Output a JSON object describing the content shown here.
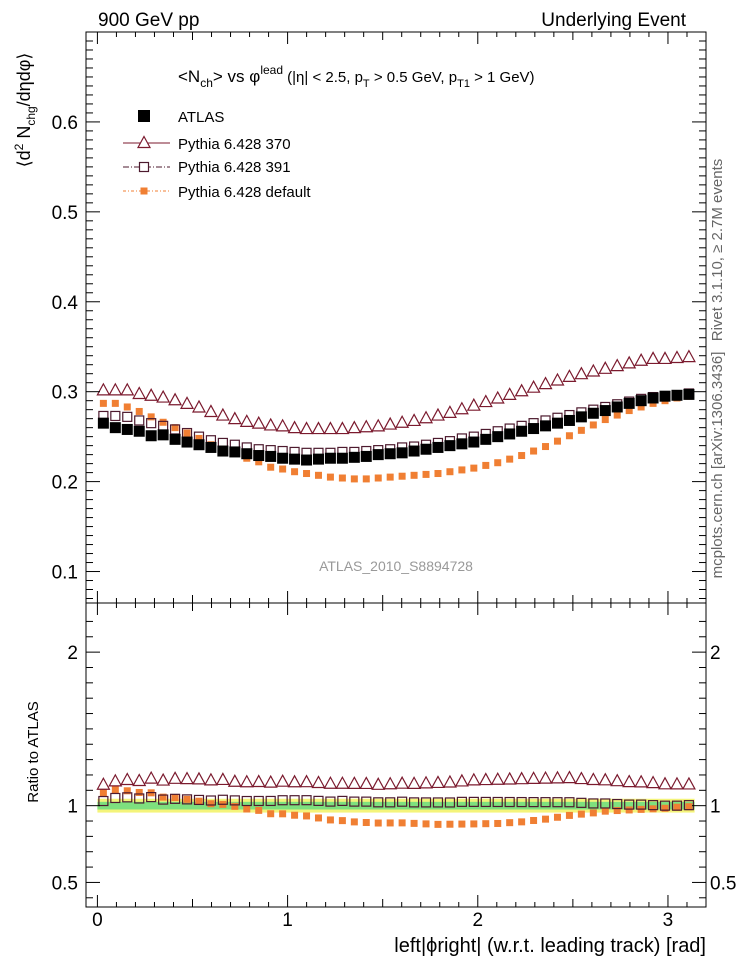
{
  "header": {
    "left_label": "900 GeV pp",
    "right_label": "Underlying Event"
  },
  "side_labels": {
    "rivet": "Rivet 3.1.10, ≥ 2.7M events",
    "mcplots": "mcplots.cern.ch [arXiv:1306.3436]"
  },
  "chart_data": {
    "type": "scatter",
    "title": "<N_ch> vs φ^lead (|η| < 2.5, p_T > 0.5 GeV, p_T1 > 1 GeV)",
    "title_parts": {
      "a": "<N",
      "a_sub": "ch",
      "b": "> vs φ",
      "b_sup": "lead",
      "c": " (|η| < 2.5, p",
      "c_sub": "T",
      "d": " > 0.5 GeV, p",
      "d_sub": "T1",
      "e": " > 1 GeV)"
    },
    "ylabel": "⟨d² N_chg/dηdφ⟩",
    "ylabel_parts": {
      "a": "⟨d",
      "a_sup": "2",
      "b": " N",
      "b_sub": "chg",
      "c": "/dηdφ⟩"
    },
    "xlabel": "left|ϕright| (w.r.t. leading track) [rad]",
    "ratio_ylabel": "Ratio to ATLAS",
    "watermark": "ATLAS_2010_S8894728",
    "xlim": [
      -0.06,
      3.2
    ],
    "ylim": [
      0.065,
      0.7
    ],
    "ratio_ylim": [
      0.34,
      2.32
    ],
    "x_major_ticks": [
      0,
      1,
      2,
      3
    ],
    "x_tick_labels": [
      "0",
      "1",
      "2",
      "3"
    ],
    "y_major_ticks": [
      0.1,
      0.2,
      0.3,
      0.4,
      0.5,
      0.6
    ],
    "y_tick_labels": [
      "0.1",
      "0.2",
      "0.3",
      "0.4",
      "0.5",
      "0.6"
    ],
    "ratio_major_ticks": [
      0.5,
      1,
      2
    ],
    "ratio_tick_labels": [
      "0.5",
      "1",
      "2"
    ],
    "x": [
      0.0314,
      0.0942,
      0.157,
      0.2199,
      0.2827,
      0.3456,
      0.4084,
      0.4712,
      0.5341,
      0.5969,
      0.6597,
      0.7226,
      0.7854,
      0.8482,
      0.9111,
      0.9739,
      1.0367,
      1.0996,
      1.1624,
      1.2252,
      1.2881,
      1.3509,
      1.4137,
      1.4766,
      1.5394,
      1.6022,
      1.6651,
      1.7279,
      1.7907,
      1.8536,
      1.9164,
      1.9792,
      2.0421,
      2.1049,
      2.1677,
      2.2306,
      2.2934,
      2.3562,
      2.4191,
      2.4819,
      2.5447,
      2.6076,
      2.6704,
      2.7332,
      2.7961,
      2.8589,
      2.9217,
      2.9845,
      3.0474,
      3.1102
    ],
    "series": [
      {
        "name": "ATLAS",
        "color": "#000000",
        "marker": "filled-square",
        "values": [
          0.265,
          0.26,
          0.258,
          0.256,
          0.251,
          0.252,
          0.247,
          0.244,
          0.241,
          0.238,
          0.234,
          0.233,
          0.231,
          0.229,
          0.228,
          0.226,
          0.225,
          0.224,
          0.225,
          0.226,
          0.226,
          0.227,
          0.228,
          0.23,
          0.231,
          0.232,
          0.234,
          0.236,
          0.238,
          0.24,
          0.242,
          0.244,
          0.247,
          0.25,
          0.253,
          0.256,
          0.259,
          0.262,
          0.265,
          0.268,
          0.272,
          0.276,
          0.279,
          0.283,
          0.287,
          0.29,
          0.293,
          0.295,
          0.296,
          0.297
        ]
      },
      {
        "name": "Pythia 6.428 370",
        "color": "#7b1a2e",
        "marker": "open-triangle",
        "values": [
          0.302,
          0.302,
          0.302,
          0.298,
          0.296,
          0.294,
          0.291,
          0.287,
          0.283,
          0.278,
          0.274,
          0.27,
          0.267,
          0.265,
          0.263,
          0.262,
          0.26,
          0.259,
          0.259,
          0.259,
          0.259,
          0.26,
          0.261,
          0.262,
          0.264,
          0.266,
          0.268,
          0.271,
          0.274,
          0.277,
          0.281,
          0.285,
          0.289,
          0.293,
          0.297,
          0.301,
          0.305,
          0.309,
          0.313,
          0.317,
          0.32,
          0.323,
          0.326,
          0.329,
          0.332,
          0.335,
          0.337,
          0.337,
          0.338,
          0.339
        ]
      },
      {
        "name": "Pythia 6.428 391",
        "color": "#4d1a2e",
        "marker": "open-square",
        "values": [
          0.273,
          0.273,
          0.272,
          0.268,
          0.265,
          0.262,
          0.258,
          0.254,
          0.25,
          0.246,
          0.243,
          0.241,
          0.238,
          0.236,
          0.235,
          0.234,
          0.233,
          0.232,
          0.232,
          0.232,
          0.233,
          0.233,
          0.234,
          0.235,
          0.236,
          0.238,
          0.239,
          0.241,
          0.243,
          0.245,
          0.248,
          0.25,
          0.253,
          0.256,
          0.259,
          0.262,
          0.265,
          0.268,
          0.271,
          0.274,
          0.277,
          0.28,
          0.283,
          0.286,
          0.289,
          0.292,
          0.294,
          0.295,
          0.296,
          0.298
        ]
      },
      {
        "name": "Pythia 6.428 default",
        "color": "#f07f33",
        "marker": "filled-square-small",
        "values": [
          0.287,
          0.287,
          0.283,
          0.278,
          0.272,
          0.266,
          0.26,
          0.254,
          0.248,
          0.241,
          0.236,
          0.232,
          0.226,
          0.222,
          0.216,
          0.214,
          0.211,
          0.209,
          0.207,
          0.205,
          0.204,
          0.203,
          0.203,
          0.204,
          0.205,
          0.206,
          0.207,
          0.208,
          0.209,
          0.211,
          0.213,
          0.215,
          0.218,
          0.221,
          0.225,
          0.229,
          0.234,
          0.239,
          0.245,
          0.251,
          0.257,
          0.263,
          0.269,
          0.274,
          0.279,
          0.283,
          0.287,
          0.29,
          0.293,
          0.295
        ]
      }
    ],
    "ratio_band": {
      "inner": 0.025,
      "outer": 0.045,
      "inner_color": "#7ee07e",
      "outer_color": "#f4f47a"
    }
  }
}
